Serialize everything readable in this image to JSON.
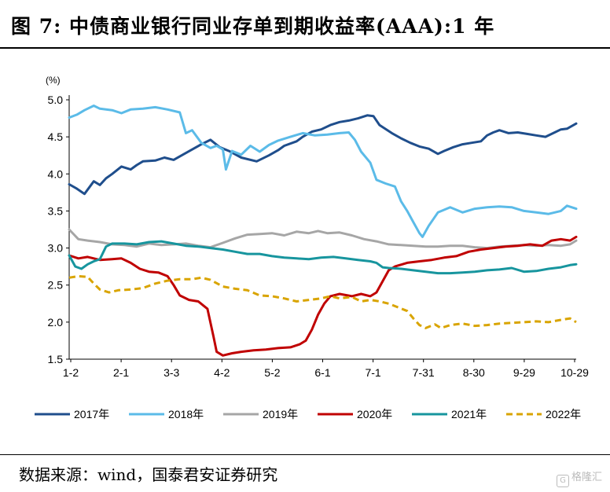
{
  "title": "图  7:  中债商业银行同业存单到期收益率(AAA):1 年",
  "source": "数据来源：wind，国泰君安证券研究",
  "watermark": "格隆汇",
  "colors": {
    "2017年": "#1f4e8c",
    "2018年": "#5bbbe8",
    "2019年": "#a6a6a6",
    "2020年": "#c00000",
    "2021年": "#17959e",
    "2022年": "#d9a400"
  },
  "chart_data": {
    "type": "line",
    "title": "中债商业银行同业存单到期收益率(AAA):1 年",
    "ylabel": "(%)",
    "xlabel": "",
    "ylim": [
      1.5,
      5.0
    ],
    "yticks": [
      "1.5",
      "2.0",
      "2.5",
      "3.0",
      "3.5",
      "4.0",
      "4.5",
      "5.0"
    ],
    "x_tick_labels": [
      "1-2",
      "2-1",
      "3-3",
      "4-2",
      "5-2",
      "6-1",
      "7-1",
      "7-31",
      "8-30",
      "9-29",
      "10-29"
    ],
    "grid": false,
    "legend_position": "bottom",
    "series": [
      {
        "name": "2017年",
        "style": "solid",
        "points": [
          [
            0,
            3.86
          ],
          [
            5,
            3.8
          ],
          [
            10,
            3.73
          ],
          [
            16,
            3.9
          ],
          [
            20,
            3.85
          ],
          [
            24,
            3.94
          ],
          [
            28,
            4.0
          ],
          [
            34,
            4.1
          ],
          [
            40,
            4.06
          ],
          [
            44,
            4.12
          ],
          [
            48,
            4.17
          ],
          [
            56,
            4.18
          ],
          [
            62,
            4.22
          ],
          [
            68,
            4.19
          ],
          [
            74,
            4.26
          ],
          [
            80,
            4.33
          ],
          [
            86,
            4.4
          ],
          [
            92,
            4.46
          ],
          [
            98,
            4.36
          ],
          [
            104,
            4.31
          ],
          [
            112,
            4.22
          ],
          [
            122,
            4.17
          ],
          [
            130,
            4.25
          ],
          [
            136,
            4.32
          ],
          [
            140,
            4.38
          ],
          [
            148,
            4.44
          ],
          [
            152,
            4.5
          ],
          [
            158,
            4.57
          ],
          [
            164,
            4.6
          ],
          [
            170,
            4.66
          ],
          [
            176,
            4.7
          ],
          [
            182,
            4.72
          ],
          [
            188,
            4.75
          ],
          [
            194,
            4.79
          ],
          [
            198,
            4.78
          ],
          [
            202,
            4.66
          ],
          [
            210,
            4.55
          ],
          [
            216,
            4.48
          ],
          [
            222,
            4.42
          ],
          [
            228,
            4.37
          ],
          [
            234,
            4.34
          ],
          [
            240,
            4.27
          ],
          [
            244,
            4.31
          ],
          [
            250,
            4.36
          ],
          [
            256,
            4.4
          ],
          [
            262,
            4.42
          ],
          [
            268,
            4.44
          ],
          [
            272,
            4.52
          ],
          [
            276,
            4.56
          ],
          [
            280,
            4.59
          ],
          [
            286,
            4.55
          ],
          [
            292,
            4.56
          ],
          [
            298,
            4.54
          ],
          [
            304,
            4.52
          ],
          [
            310,
            4.5
          ],
          [
            316,
            4.56
          ],
          [
            320,
            4.6
          ],
          [
            324,
            4.61
          ],
          [
            330,
            4.68
          ]
        ]
      },
      {
        "name": "2018年",
        "style": "solid",
        "points": [
          [
            0,
            4.76
          ],
          [
            5,
            4.8
          ],
          [
            10,
            4.86
          ],
          [
            16,
            4.92
          ],
          [
            20,
            4.88
          ],
          [
            28,
            4.86
          ],
          [
            34,
            4.82
          ],
          [
            40,
            4.87
          ],
          [
            48,
            4.88
          ],
          [
            56,
            4.9
          ],
          [
            64,
            4.87
          ],
          [
            72,
            4.83
          ],
          [
            76,
            4.55
          ],
          [
            80,
            4.59
          ],
          [
            86,
            4.42
          ],
          [
            92,
            4.35
          ],
          [
            96,
            4.38
          ],
          [
            100,
            4.33
          ],
          [
            102,
            4.06
          ],
          [
            106,
            4.31
          ],
          [
            112,
            4.26
          ],
          [
            118,
            4.38
          ],
          [
            124,
            4.3
          ],
          [
            130,
            4.39
          ],
          [
            136,
            4.45
          ],
          [
            144,
            4.5
          ],
          [
            152,
            4.55
          ],
          [
            160,
            4.52
          ],
          [
            168,
            4.53
          ],
          [
            176,
            4.55
          ],
          [
            182,
            4.56
          ],
          [
            186,
            4.46
          ],
          [
            190,
            4.3
          ],
          [
            196,
            4.15
          ],
          [
            200,
            3.92
          ],
          [
            206,
            3.87
          ],
          [
            212,
            3.83
          ],
          [
            216,
            3.63
          ],
          [
            220,
            3.5
          ],
          [
            224,
            3.35
          ],
          [
            228,
            3.2
          ],
          [
            230,
            3.15
          ],
          [
            234,
            3.3
          ],
          [
            240,
            3.48
          ],
          [
            248,
            3.55
          ],
          [
            256,
            3.48
          ],
          [
            264,
            3.53
          ],
          [
            272,
            3.55
          ],
          [
            280,
            3.56
          ],
          [
            288,
            3.55
          ],
          [
            296,
            3.5
          ],
          [
            304,
            3.48
          ],
          [
            312,
            3.46
          ],
          [
            320,
            3.5
          ],
          [
            324,
            3.57
          ],
          [
            330,
            3.53
          ]
        ]
      },
      {
        "name": "2019年",
        "style": "solid",
        "points": [
          [
            0,
            3.25
          ],
          [
            6,
            3.12
          ],
          [
            12,
            3.1
          ],
          [
            20,
            3.08
          ],
          [
            28,
            3.05
          ],
          [
            36,
            3.04
          ],
          [
            44,
            3.02
          ],
          [
            52,
            3.06
          ],
          [
            60,
            3.04
          ],
          [
            68,
            3.05
          ],
          [
            76,
            3.06
          ],
          [
            84,
            3.03
          ],
          [
            92,
            3.01
          ],
          [
            100,
            3.07
          ],
          [
            108,
            3.13
          ],
          [
            116,
            3.18
          ],
          [
            124,
            3.19
          ],
          [
            132,
            3.2
          ],
          [
            140,
            3.17
          ],
          [
            148,
            3.22
          ],
          [
            156,
            3.2
          ],
          [
            162,
            3.23
          ],
          [
            168,
            3.2
          ],
          [
            176,
            3.21
          ],
          [
            184,
            3.17
          ],
          [
            192,
            3.12
          ],
          [
            200,
            3.09
          ],
          [
            208,
            3.05
          ],
          [
            216,
            3.04
          ],
          [
            224,
            3.03
          ],
          [
            232,
            3.02
          ],
          [
            240,
            3.02
          ],
          [
            248,
            3.03
          ],
          [
            256,
            3.03
          ],
          [
            264,
            3.01
          ],
          [
            272,
            3.0
          ],
          [
            280,
            3.02
          ],
          [
            288,
            3.03
          ],
          [
            296,
            3.04
          ],
          [
            304,
            3.03
          ],
          [
            312,
            3.04
          ],
          [
            320,
            3.03
          ],
          [
            326,
            3.05
          ],
          [
            330,
            3.1
          ]
        ]
      },
      {
        "name": "2020年",
        "style": "solid",
        "points": [
          [
            0,
            2.9
          ],
          [
            6,
            2.86
          ],
          [
            12,
            2.88
          ],
          [
            20,
            2.84
          ],
          [
            28,
            2.85
          ],
          [
            34,
            2.86
          ],
          [
            40,
            2.8
          ],
          [
            46,
            2.72
          ],
          [
            52,
            2.68
          ],
          [
            58,
            2.67
          ],
          [
            64,
            2.62
          ],
          [
            68,
            2.5
          ],
          [
            72,
            2.36
          ],
          [
            78,
            2.3
          ],
          [
            84,
            2.28
          ],
          [
            90,
            2.18
          ],
          [
            94,
            1.8
          ],
          [
            96,
            1.6
          ],
          [
            100,
            1.55
          ],
          [
            106,
            1.58
          ],
          [
            112,
            1.6
          ],
          [
            120,
            1.62
          ],
          [
            128,
            1.63
          ],
          [
            136,
            1.65
          ],
          [
            144,
            1.66
          ],
          [
            150,
            1.7
          ],
          [
            154,
            1.75
          ],
          [
            158,
            1.9
          ],
          [
            162,
            2.1
          ],
          [
            166,
            2.25
          ],
          [
            170,
            2.35
          ],
          [
            176,
            2.38
          ],
          [
            184,
            2.35
          ],
          [
            190,
            2.38
          ],
          [
            196,
            2.35
          ],
          [
            200,
            2.4
          ],
          [
            204,
            2.55
          ],
          [
            208,
            2.7
          ],
          [
            212,
            2.75
          ],
          [
            220,
            2.8
          ],
          [
            228,
            2.82
          ],
          [
            236,
            2.84
          ],
          [
            244,
            2.87
          ],
          [
            252,
            2.89
          ],
          [
            260,
            2.95
          ],
          [
            268,
            2.98
          ],
          [
            276,
            3.0
          ],
          [
            284,
            3.02
          ],
          [
            292,
            3.03
          ],
          [
            300,
            3.05
          ],
          [
            308,
            3.03
          ],
          [
            314,
            3.1
          ],
          [
            320,
            3.12
          ],
          [
            326,
            3.1
          ],
          [
            330,
            3.15
          ]
        ]
      },
      {
        "name": "2021年",
        "style": "solid",
        "points": [
          [
            0,
            2.9
          ],
          [
            4,
            2.75
          ],
          [
            8,
            2.72
          ],
          [
            12,
            2.78
          ],
          [
            16,
            2.82
          ],
          [
            20,
            2.85
          ],
          [
            24,
            3.02
          ],
          [
            28,
            3.06
          ],
          [
            36,
            3.06
          ],
          [
            44,
            3.05
          ],
          [
            52,
            3.08
          ],
          [
            60,
            3.09
          ],
          [
            68,
            3.06
          ],
          [
            76,
            3.03
          ],
          [
            84,
            3.02
          ],
          [
            92,
            3.0
          ],
          [
            100,
            2.98
          ],
          [
            108,
            2.95
          ],
          [
            116,
            2.92
          ],
          [
            124,
            2.92
          ],
          [
            132,
            2.89
          ],
          [
            140,
            2.87
          ],
          [
            148,
            2.86
          ],
          [
            156,
            2.85
          ],
          [
            164,
            2.87
          ],
          [
            172,
            2.88
          ],
          [
            180,
            2.86
          ],
          [
            188,
            2.84
          ],
          [
            196,
            2.82
          ],
          [
            200,
            2.8
          ],
          [
            204,
            2.74
          ],
          [
            208,
            2.73
          ],
          [
            216,
            2.72
          ],
          [
            224,
            2.7
          ],
          [
            232,
            2.68
          ],
          [
            240,
            2.66
          ],
          [
            248,
            2.66
          ],
          [
            256,
            2.67
          ],
          [
            264,
            2.68
          ],
          [
            272,
            2.7
          ],
          [
            280,
            2.71
          ],
          [
            288,
            2.73
          ],
          [
            296,
            2.68
          ],
          [
            304,
            2.69
          ],
          [
            312,
            2.72
          ],
          [
            320,
            2.74
          ],
          [
            326,
            2.77
          ],
          [
            330,
            2.78
          ]
        ]
      },
      {
        "name": "2022年",
        "style": "dashed",
        "points": [
          [
            0,
            2.6
          ],
          [
            6,
            2.62
          ],
          [
            12,
            2.61
          ],
          [
            16,
            2.52
          ],
          [
            20,
            2.44
          ],
          [
            26,
            2.4
          ],
          [
            32,
            2.43
          ],
          [
            40,
            2.44
          ],
          [
            48,
            2.46
          ],
          [
            56,
            2.52
          ],
          [
            64,
            2.56
          ],
          [
            72,
            2.58
          ],
          [
            80,
            2.58
          ],
          [
            86,
            2.6
          ],
          [
            92,
            2.57
          ],
          [
            100,
            2.48
          ],
          [
            108,
            2.45
          ],
          [
            116,
            2.43
          ],
          [
            124,
            2.36
          ],
          [
            132,
            2.35
          ],
          [
            140,
            2.32
          ],
          [
            148,
            2.28
          ],
          [
            156,
            2.3
          ],
          [
            164,
            2.32
          ],
          [
            170,
            2.35
          ],
          [
            176,
            2.32
          ],
          [
            184,
            2.34
          ],
          [
            190,
            2.28
          ],
          [
            196,
            2.3
          ],
          [
            202,
            2.28
          ],
          [
            208,
            2.25
          ],
          [
            214,
            2.2
          ],
          [
            220,
            2.15
          ],
          [
            224,
            2.05
          ],
          [
            228,
            1.96
          ],
          [
            232,
            1.92
          ],
          [
            238,
            1.97
          ],
          [
            242,
            1.92
          ],
          [
            248,
            1.96
          ],
          [
            256,
            1.98
          ],
          [
            264,
            1.95
          ],
          [
            272,
            1.96
          ],
          [
            280,
            1.98
          ],
          [
            288,
            1.99
          ],
          [
            296,
            2.0
          ],
          [
            304,
            2.01
          ],
          [
            312,
            2.0
          ],
          [
            320,
            2.03
          ],
          [
            326,
            2.05
          ],
          [
            330,
            2.0
          ]
        ]
      }
    ]
  }
}
